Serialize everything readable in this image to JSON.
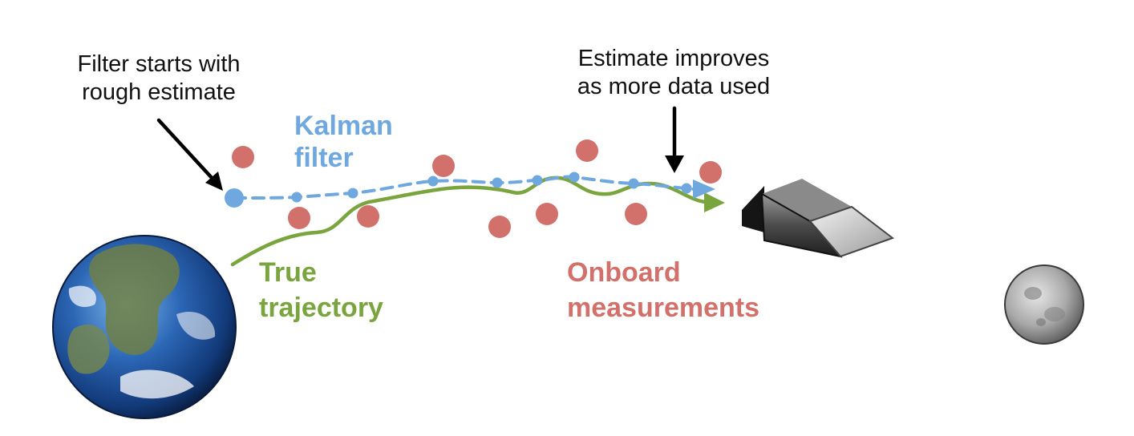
{
  "labels": {
    "filter_start": "Filter starts with\nrough estimate",
    "estimate_improves": "Estimate improves\nas more data used",
    "kalman": "Kalman\nfilter",
    "true_trajectory": "True\ntrajectory",
    "measurements": "Onboard\nmeasurements"
  },
  "colors": {
    "kalman": "#6fa7df",
    "true_trajectory": "#7aa43d",
    "measurements": "#d2706b",
    "annotation_arrow": "#000000"
  },
  "icons": {
    "earth": "earth-icon",
    "spacecraft": "spacecraft-icon",
    "moon": "moon-icon"
  }
}
